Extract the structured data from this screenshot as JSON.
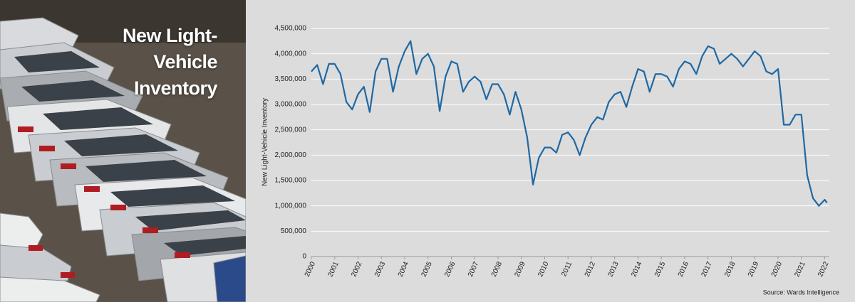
{
  "chart_data": {
    "type": "line",
    "title": "New Light-Vehicle Inventory",
    "y_label": "New Light-Vehicle Inventory",
    "source": "Source: Wards Intelligence",
    "x": [
      2000,
      2000.25,
      2000.5,
      2000.75,
      2001,
      2001.25,
      2001.5,
      2001.75,
      2002,
      2002.25,
      2002.5,
      2002.75,
      2003,
      2003.25,
      2003.5,
      2003.75,
      2004,
      2004.25,
      2004.5,
      2004.75,
      2005,
      2005.25,
      2005.5,
      2005.75,
      2006,
      2006.25,
      2006.5,
      2006.75,
      2007,
      2007.25,
      2007.5,
      2007.75,
      2008,
      2008.25,
      2008.5,
      2008.75,
      2009,
      2009.25,
      2009.5,
      2009.75,
      2010,
      2010.25,
      2010.5,
      2010.75,
      2011,
      2011.25,
      2011.5,
      2011.75,
      2012,
      2012.25,
      2012.5,
      2012.75,
      2013,
      2013.25,
      2013.5,
      2013.75,
      2014,
      2014.25,
      2014.5,
      2014.75,
      2015,
      2015.25,
      2015.5,
      2015.75,
      2016,
      2016.25,
      2016.5,
      2016.75,
      2017,
      2017.25,
      2017.5,
      2017.75,
      2018,
      2018.25,
      2018.5,
      2018.75,
      2019,
      2019.25,
      2019.5,
      2019.75,
      2020,
      2020.25,
      2020.5,
      2020.75,
      2021,
      2021.25,
      2021.5,
      2021.75,
      2022,
      2022.1
    ],
    "series": [
      {
        "name": "New Light-Vehicle Inventory",
        "color": "#1f68a3",
        "values": [
          3650000,
          3780000,
          3400000,
          3800000,
          3800000,
          3600000,
          3050000,
          2900000,
          3200000,
          3350000,
          2850000,
          3650000,
          3900000,
          3900000,
          3250000,
          3750000,
          4050000,
          4250000,
          3600000,
          3900000,
          4000000,
          3750000,
          2870000,
          3550000,
          3850000,
          3800000,
          3250000,
          3450000,
          3550000,
          3450000,
          3100000,
          3400000,
          3400000,
          3200000,
          2800000,
          3250000,
          2900000,
          2350000,
          1420000,
          1950000,
          2150000,
          2150000,
          2050000,
          2400000,
          2450000,
          2300000,
          2000000,
          2350000,
          2600000,
          2750000,
          2700000,
          3050000,
          3200000,
          3250000,
          2950000,
          3350000,
          3700000,
          3650000,
          3250000,
          3600000,
          3600000,
          3550000,
          3350000,
          3700000,
          3850000,
          3800000,
          3600000,
          3950000,
          4150000,
          4100000,
          3800000,
          3900000,
          4000000,
          3900000,
          3750000,
          3900000,
          4050000,
          3950000,
          3650000,
          3600000,
          3700000,
          2600000,
          2600000,
          2800000,
          2800000,
          1600000,
          1150000,
          1000000,
          1120000,
          1060000
        ]
      }
    ],
    "xlim": [
      2000,
      2022.2
    ],
    "xticks": [
      2000,
      2001,
      2002,
      2003,
      2004,
      2005,
      2006,
      2007,
      2008,
      2009,
      2010,
      2011,
      2012,
      2013,
      2014,
      2015,
      2016,
      2017,
      2018,
      2019,
      2020,
      2021,
      2022
    ],
    "ylim": [
      0,
      4500000
    ],
    "yticks": [
      0,
      {
        "value": 500000,
        "label": "500,000"
      },
      {
        "value": 1000000,
        "label": "1,000,000"
      },
      {
        "value": 1500000,
        "label": "1,500,000"
      },
      {
        "value": 2000000,
        "label": "2,000,000"
      },
      {
        "value": 2500000,
        "label": "2,500,000"
      },
      {
        "value": 3000000,
        "label": "3,000,000"
      },
      {
        "value": 3500000,
        "label": "3,500,000"
      },
      {
        "value": 4000000,
        "label": "4,000,000"
      },
      {
        "value": 4500000,
        "label": "4,500,000"
      }
    ],
    "grid": true
  }
}
